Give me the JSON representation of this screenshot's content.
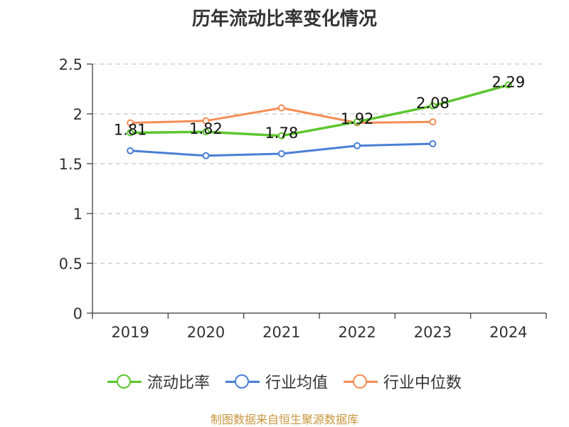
{
  "chart_data": {
    "type": "line",
    "title": "历年流动比率变化情况",
    "categories": [
      "2019",
      "2020",
      "2021",
      "2022",
      "2023",
      "2024"
    ],
    "ylim": [
      0,
      2.5
    ],
    "yticks": [
      "0",
      "0.5",
      "1",
      "1.5",
      "2",
      "2.5"
    ],
    "grid": true,
    "legend": "bottom",
    "series": [
      {
        "name": "流动比率",
        "color": "#5cc52e",
        "values": [
          1.81,
          1.82,
          1.78,
          1.92,
          2.08,
          2.29
        ],
        "labels": [
          "1.81",
          "1.82",
          "1.78",
          "1.92",
          "2.08",
          "2.29"
        ]
      },
      {
        "name": "行业均值",
        "color": "#4a7fd6",
        "values": [
          1.63,
          1.58,
          1.6,
          1.68,
          1.7,
          null
        ]
      },
      {
        "name": "行业中位数",
        "color": "#f58d55",
        "values": [
          1.91,
          1.93,
          2.06,
          1.91,
          1.92,
          null
        ]
      }
    ]
  },
  "source": "制图数据来自恒生聚源数据库"
}
